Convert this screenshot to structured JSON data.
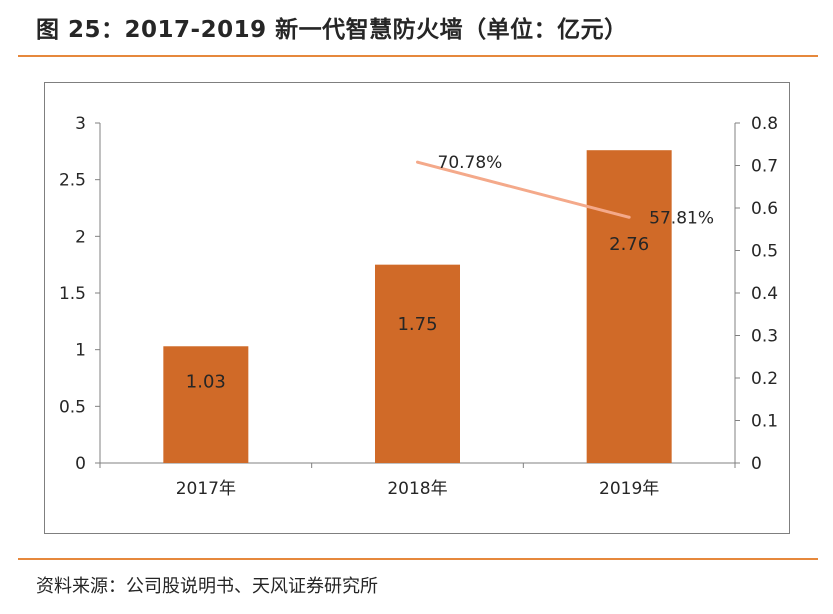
{
  "title": "图 25：2017-2019 新一代智慧防火墙（单位：亿元）",
  "source": "资料来源：公司股说明书、天风证券研究所",
  "colors": {
    "bar": "#d06a28",
    "line": "#f4a98a",
    "axis": "#808080",
    "rule": "#e6883c",
    "text": "#262626"
  },
  "chart_data": {
    "type": "bar",
    "categories": [
      "2017年",
      "2018年",
      "2019年"
    ],
    "series": [
      {
        "values": [
          1.03,
          1.75,
          2.76
        ],
        "labels": [
          "1.03",
          "1.75",
          "2.76"
        ],
        "axis": "left",
        "kind": "bar"
      },
      {
        "values": [
          null,
          0.7078,
          0.5781
        ],
        "labels": [
          "",
          "70.78%",
          "57.81%"
        ],
        "axis": "right",
        "kind": "line"
      }
    ],
    "y_left": {
      "min": 0,
      "max": 3,
      "ticks": [
        "0",
        "0.5",
        "1",
        "1.5",
        "2",
        "2.5",
        "3"
      ]
    },
    "y_right": {
      "min": 0,
      "max": 0.8,
      "ticks": [
        "0",
        "0.1",
        "0.2",
        "0.3",
        "0.4",
        "0.5",
        "0.6",
        "0.7",
        "0.8"
      ]
    },
    "grid": false,
    "legend": "none"
  }
}
